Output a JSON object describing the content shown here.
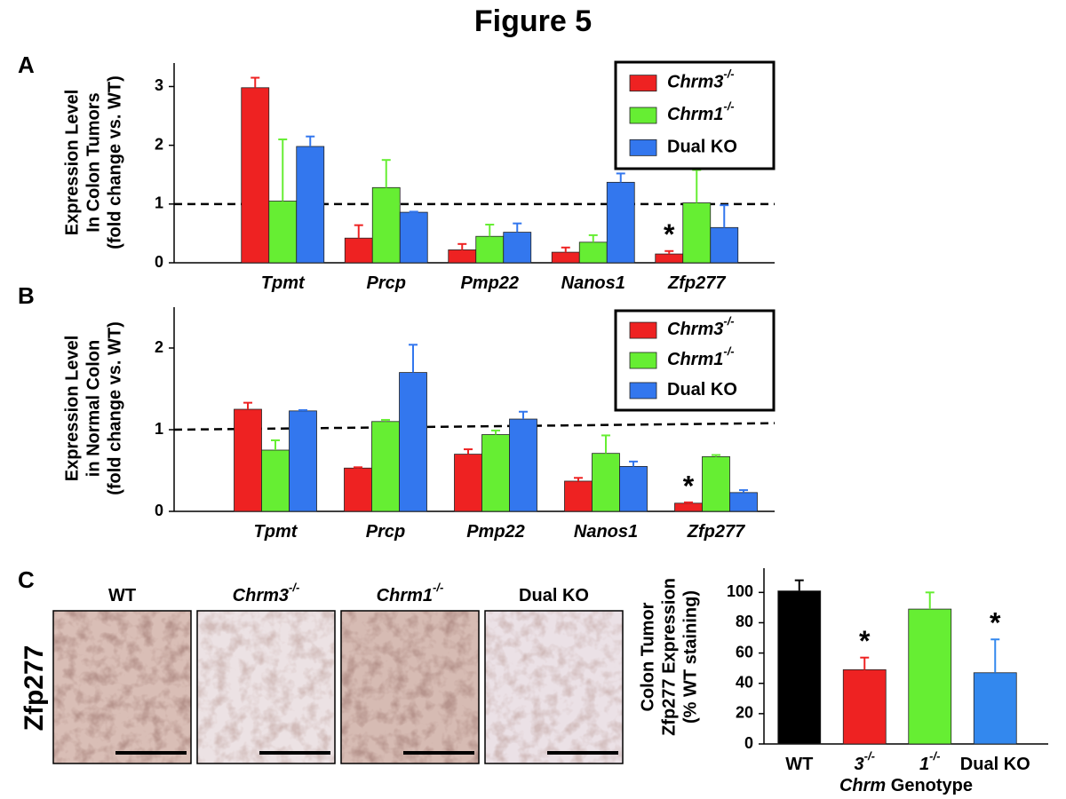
{
  "title": "Figure 5",
  "micrographs": {
    "panel": "C",
    "stain": "Zfp277",
    "labels": [
      "WT",
      "Chrm3",
      "Chrm1",
      "Dual KO"
    ],
    "label_sups": [
      null,
      "-/-",
      "-/-",
      null
    ]
  },
  "chart_data": [
    {
      "type": "bar",
      "panel": "A",
      "ylabel": [
        "Expression Level",
        "In Colon Tumors",
        "(fold change vs. WT)"
      ],
      "categories": [
        "Tpmt",
        "Prcp",
        "Pmp22",
        "Nanos1",
        "Zfp277"
      ],
      "series": [
        {
          "name": "Chrm3",
          "sup": "-/-",
          "color": "#ee2222",
          "values": [
            2.98,
            0.42,
            0.22,
            0.18,
            0.15
          ],
          "errors": [
            0.17,
            0.22,
            0.1,
            0.08,
            0.05
          ],
          "annotations": [
            null,
            null,
            null,
            null,
            "*"
          ]
        },
        {
          "name": "Chrm1",
          "sup": "-/-",
          "color": "#66ee33",
          "values": [
            1.05,
            1.28,
            0.45,
            0.35,
            1.02
          ],
          "errors": [
            1.05,
            0.47,
            0.2,
            0.12,
            0.56
          ]
        },
        {
          "name": "Dual KO",
          "color": "#3377ee",
          "values": [
            1.98,
            0.86,
            0.52,
            1.37,
            0.6
          ],
          "errors": [
            0.17,
            0.01,
            0.15,
            0.15,
            0.38
          ]
        }
      ],
      "ylim": [
        0,
        3.4
      ],
      "yticks": [
        0,
        1,
        2,
        3
      ],
      "reference_line": [
        1,
        1
      ],
      "legend": "upper right"
    },
    {
      "type": "bar",
      "panel": "B",
      "ylabel": [
        "Expression Level",
        "in Normal Colon",
        "(fold change vs. WT)"
      ],
      "categories": [
        "Tpmt",
        "Prcp",
        "Pmp22",
        "Nanos1",
        "Zfp277"
      ],
      "series": [
        {
          "name": "Chrm3",
          "sup": "-/-",
          "color": "#ee2222",
          "values": [
            1.25,
            0.53,
            0.7,
            0.37,
            0.1
          ],
          "errors": [
            0.08,
            0.01,
            0.06,
            0.04,
            0.01
          ],
          "annotations": [
            null,
            null,
            null,
            null,
            "*"
          ]
        },
        {
          "name": "Chrm1",
          "sup": "-/-",
          "color": "#66ee33",
          "values": [
            0.75,
            1.1,
            0.94,
            0.71,
            0.67
          ],
          "errors": [
            0.12,
            0.02,
            0.05,
            0.22,
            0.02
          ]
        },
        {
          "name": "Dual KO",
          "color": "#3377ee",
          "values": [
            1.23,
            1.7,
            1.13,
            0.55,
            0.23
          ],
          "errors": [
            0.01,
            0.34,
            0.09,
            0.06,
            0.03
          ]
        }
      ],
      "ylim": [
        0,
        2.5
      ],
      "yticks": [
        0,
        1,
        2
      ],
      "reference_line": [
        1,
        1.08
      ],
      "legend": "upper right"
    },
    {
      "type": "bar",
      "ylabel": [
        "Colon Tumor",
        "Zfp277 Expression",
        "(% WT staining)"
      ],
      "categories": [
        "WT",
        "3",
        "1",
        "Dual KO"
      ],
      "category_sups": [
        null,
        "-/-",
        "-/-",
        null
      ],
      "xlabel": {
        "italic": "Chrm",
        "text": "Genotype"
      },
      "values": [
        101,
        49,
        89,
        47
      ],
      "errors": [
        7,
        8,
        11,
        22
      ],
      "colors": [
        "#000000",
        "#ee2222",
        "#66ee33",
        "#3388ee"
      ],
      "annotations": [
        null,
        "*",
        null,
        "*"
      ],
      "ylim": [
        0,
        116
      ],
      "yticks": [
        0,
        20,
        40,
        60,
        80,
        100
      ]
    }
  ]
}
